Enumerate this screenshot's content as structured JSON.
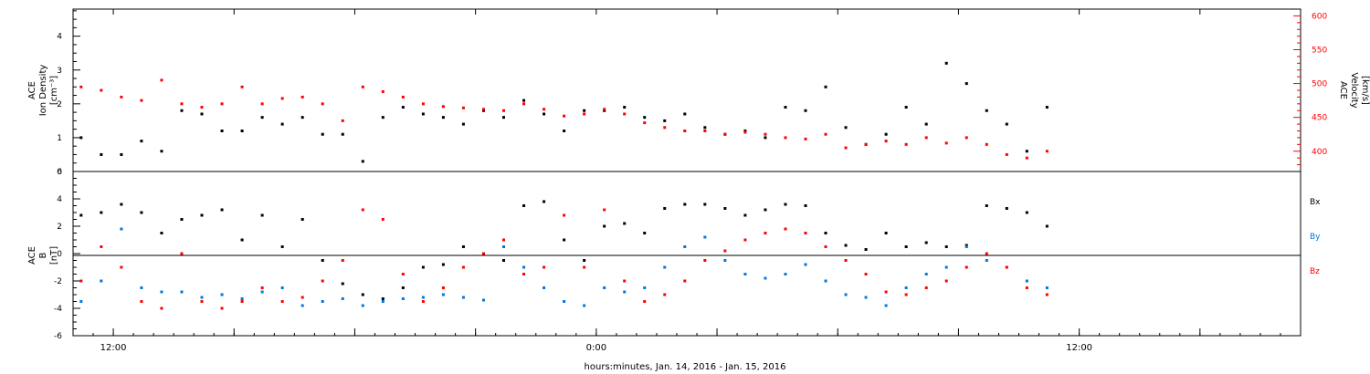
{
  "chart_data": [
    {
      "type": "scatter",
      "panel": "ion density / velocity",
      "ylabel": [
        "ACE",
        "Ion Density",
        "[cm⁻³]"
      ],
      "ylim": [
        0,
        4.8
      ],
      "yticks": [
        "0",
        "1",
        "2",
        "3",
        "4"
      ],
      "y2label": [
        "ACE",
        "Velocity",
        "[km/s]"
      ],
      "y2lim": [
        370,
        610
      ],
      "y2ticks": [
        "400",
        "450",
        "500",
        "550",
        "600"
      ],
      "x_hours_range": [
        -13,
        17.5
      ],
      "series": [
        {
          "color": "#000000",
          "axis": "left",
          "x": [
            -12.8,
            -12.3,
            -11.8,
            -11.3,
            -10.8,
            -10.3,
            -9.8,
            -9.3,
            -8.8,
            -8.3,
            -7.8,
            -7.3,
            -6.8,
            -6.3,
            -5.8,
            -5.3,
            -4.8,
            -4.3,
            -3.8,
            -3.3,
            -2.8,
            -2.3,
            -1.8,
            -1.3,
            -0.8,
            -0.3,
            0.2,
            0.7,
            1.2,
            1.7,
            2.2,
            2.7,
            3.2,
            3.7,
            4.2,
            4.7,
            5.2,
            5.7,
            6.2,
            6.7,
            7.2,
            7.7,
            8.2,
            8.7,
            9.2,
            9.7,
            10.2,
            10.7,
            11.2
          ],
          "values": [
            1.0,
            0.5,
            0.5,
            0.9,
            0.6,
            1.8,
            1.7,
            1.2,
            1.2,
            1.6,
            1.4,
            1.6,
            1.1,
            1.1,
            0.3,
            1.6,
            1.9,
            1.7,
            1.6,
            1.4,
            1.8,
            1.6,
            2.1,
            1.7,
            1.2,
            1.8,
            1.8,
            1.9,
            1.6,
            1.5,
            1.7,
            1.3,
            1.1,
            1.2,
            1.0,
            1.9,
            1.8,
            2.5,
            1.3,
            0.8,
            1.1,
            1.9,
            1.4,
            3.2,
            2.6,
            1.8,
            1.4,
            0.6,
            1.9
          ]
        },
        {
          "color": "#ff0000",
          "axis": "right",
          "x": [
            -12.8,
            -12.3,
            -11.8,
            -11.3,
            -10.8,
            -10.3,
            -9.8,
            -9.3,
            -8.8,
            -8.3,
            -7.8,
            -7.3,
            -6.8,
            -6.3,
            -5.8,
            -5.3,
            -4.8,
            -4.3,
            -3.8,
            -3.3,
            -2.8,
            -2.3,
            -1.8,
            -1.3,
            -0.8,
            -0.3,
            0.2,
            0.7,
            1.2,
            1.7,
            2.2,
            2.7,
            3.2,
            3.7,
            4.2,
            4.7,
            5.2,
            5.7,
            6.2,
            6.7,
            7.2,
            7.7,
            8.2,
            8.7,
            9.2,
            9.7,
            10.2,
            10.7,
            11.2
          ],
          "values": [
            495,
            490,
            480,
            475,
            505,
            470,
            465,
            470,
            495,
            470,
            478,
            480,
            470,
            445,
            495,
            488,
            480,
            470,
            466,
            464,
            462,
            460,
            470,
            462,
            452,
            455,
            462,
            455,
            442,
            435,
            430,
            430,
            425,
            428,
            425,
            420,
            418,
            425,
            405,
            410,
            415,
            410,
            420,
            412,
            420,
            410,
            395,
            390,
            400
          ]
        }
      ]
    },
    {
      "type": "scatter",
      "panel": "magnetic field components",
      "ylabel": [
        "ACE",
        "B",
        "[nT]"
      ],
      "ylim": [
        -6,
        6
      ],
      "yticks": [
        "-6",
        "-4",
        "-2",
        "0",
        "2",
        "4",
        "6"
      ],
      "x_hours_range": [
        -13,
        17.5
      ],
      "xticks": [
        "12:00",
        "0:00",
        "12:00"
      ],
      "xlabel": "hours:minutes, Jan. 14, 2016 - Jan. 15, 2016",
      "series": [
        {
          "name": "Bx",
          "color": "#000000",
          "x": [
            -12.8,
            -12.3,
            -11.8,
            -11.3,
            -10.8,
            -10.3,
            -9.8,
            -9.3,
            -8.8,
            -8.3,
            -7.8,
            -7.3,
            -6.8,
            -6.3,
            -5.8,
            -5.3,
            -4.8,
            -4.3,
            -3.8,
            -3.3,
            -2.8,
            -2.3,
            -1.8,
            -1.3,
            -0.8,
            -0.3,
            0.2,
            0.7,
            1.2,
            1.7,
            2.2,
            2.7,
            3.2,
            3.7,
            4.2,
            4.7,
            5.2,
            5.7,
            6.2,
            6.7,
            7.2,
            7.7,
            8.2,
            8.7,
            9.2,
            9.7,
            10.2,
            10.7,
            11.2
          ],
          "values": [
            2.8,
            3.0,
            3.6,
            3.0,
            1.5,
            2.5,
            2.8,
            3.2,
            1.0,
            2.8,
            0.5,
            2.5,
            -0.5,
            -2.2,
            -3.0,
            -3.3,
            -2.5,
            -1.0,
            -0.8,
            0.5,
            0.0,
            -0.5,
            3.5,
            3.8,
            1.0,
            -0.5,
            2.0,
            2.2,
            1.5,
            3.3,
            3.6,
            3.6,
            3.3,
            2.8,
            3.2,
            3.6,
            3.5,
            1.5,
            0.6,
            0.3,
            1.5,
            0.5,
            0.8,
            0.5,
            0.6,
            3.5,
            3.3,
            3.0,
            2.0
          ]
        },
        {
          "name": "By",
          "color": "#0077dd",
          "x": [
            -12.8,
            -12.3,
            -11.8,
            -11.3,
            -10.8,
            -10.3,
            -9.8,
            -9.3,
            -8.8,
            -8.3,
            -7.8,
            -7.3,
            -6.8,
            -6.3,
            -5.8,
            -5.3,
            -4.8,
            -4.3,
            -3.8,
            -3.3,
            -2.8,
            -2.3,
            -1.8,
            -1.3,
            -0.8,
            -0.3,
            0.2,
            0.7,
            1.2,
            1.7,
            2.2,
            2.7,
            3.2,
            3.7,
            4.2,
            4.7,
            5.2,
            5.7,
            6.2,
            6.7,
            7.2,
            7.7,
            8.2,
            8.7,
            9.2,
            9.7,
            10.2,
            10.7,
            11.2
          ],
          "values": [
            -3.5,
            -2.0,
            1.8,
            -2.5,
            -2.8,
            -2.8,
            -3.2,
            -3.0,
            -3.3,
            -2.8,
            -2.5,
            -3.8,
            -3.5,
            -3.3,
            -3.8,
            -3.5,
            -3.3,
            -3.2,
            -3.0,
            -3.2,
            -3.4,
            0.5,
            -1.0,
            -2.5,
            -3.5,
            -3.8,
            -2.5,
            -2.8,
            -2.5,
            -1.0,
            0.5,
            1.2,
            -0.5,
            -1.5,
            -1.8,
            -1.5,
            -0.8,
            -2.0,
            -3.0,
            -3.2,
            -3.8,
            -2.5,
            -1.5,
            -1.0,
            0.5,
            -0.5,
            -1.0,
            -2.0,
            -2.5
          ]
        },
        {
          "name": "Bz",
          "color": "#ff0000",
          "x": [
            -12.8,
            -12.3,
            -11.8,
            -11.3,
            -10.8,
            -10.3,
            -9.8,
            -9.3,
            -8.8,
            -8.3,
            -7.8,
            -7.3,
            -6.8,
            -6.3,
            -5.8,
            -5.3,
            -4.8,
            -4.3,
            -3.8,
            -3.3,
            -2.8,
            -2.3,
            -1.8,
            -1.3,
            -0.8,
            -0.3,
            0.2,
            0.7,
            1.2,
            1.7,
            2.2,
            2.7,
            3.2,
            3.7,
            4.2,
            4.7,
            5.2,
            5.7,
            6.2,
            6.7,
            7.2,
            7.7,
            8.2,
            8.7,
            9.2,
            9.7,
            10.2,
            10.7,
            11.2
          ],
          "values": [
            -2.0,
            0.5,
            -1.0,
            -3.5,
            -4.0,
            0.0,
            -3.5,
            -4.0,
            -3.5,
            -2.5,
            -3.5,
            -3.2,
            -2.0,
            -0.5,
            3.2,
            2.5,
            -1.5,
            -3.5,
            -2.5,
            -1.0,
            0.0,
            1.0,
            -1.5,
            -1.0,
            2.8,
            -1.0,
            3.2,
            -2.0,
            -3.5,
            -3.0,
            -2.0,
            -0.5,
            0.2,
            1.0,
            1.5,
            1.8,
            1.5,
            0.5,
            -0.5,
            -1.5,
            -2.8,
            -3.0,
            -2.5,
            -2.0,
            -1.0,
            0.0,
            -1.0,
            -2.5,
            -3.0
          ]
        }
      ]
    }
  ]
}
